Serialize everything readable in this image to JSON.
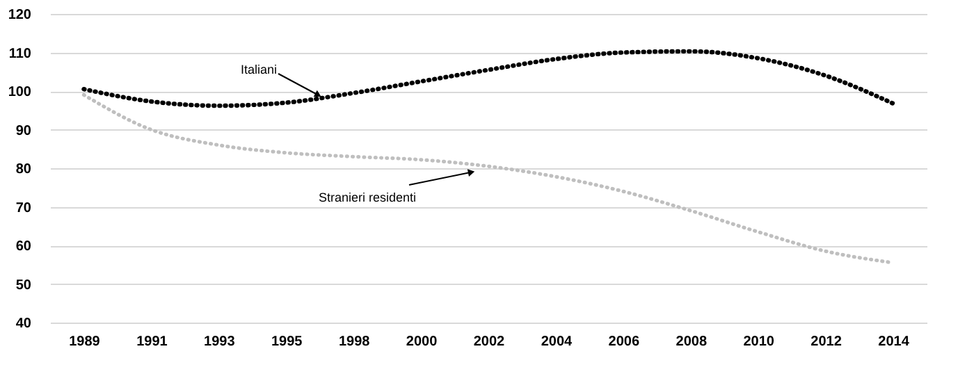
{
  "chart_data": {
    "type": "line",
    "categories": [
      "1989",
      "1991",
      "1993",
      "1995",
      "1998",
      "2000",
      "2002",
      "2004",
      "2006",
      "2008",
      "2010",
      "2012",
      "2014"
    ],
    "series": [
      {
        "name": "Italiani",
        "color": "#000000",
        "values": [
          100.5,
          97.3,
          96.2,
          97,
          99.5,
          102.5,
          105.5,
          108.3,
          110,
          110.3,
          108.5,
          104,
          96.8
        ]
      },
      {
        "name": "Stranieri residenti",
        "color": "#bfbfbf",
        "values": [
          99,
          90,
          86,
          84,
          83,
          82.2,
          80.5,
          77.8,
          74,
          69,
          63.5,
          58.5,
          55.5
        ]
      }
    ],
    "ylim": [
      40,
      120
    ],
    "yticks": [
      40,
      50,
      60,
      70,
      80,
      90,
      100,
      110,
      120
    ],
    "grid": "y",
    "legend": false,
    "line_style": "dotted",
    "marker": "none"
  }
}
